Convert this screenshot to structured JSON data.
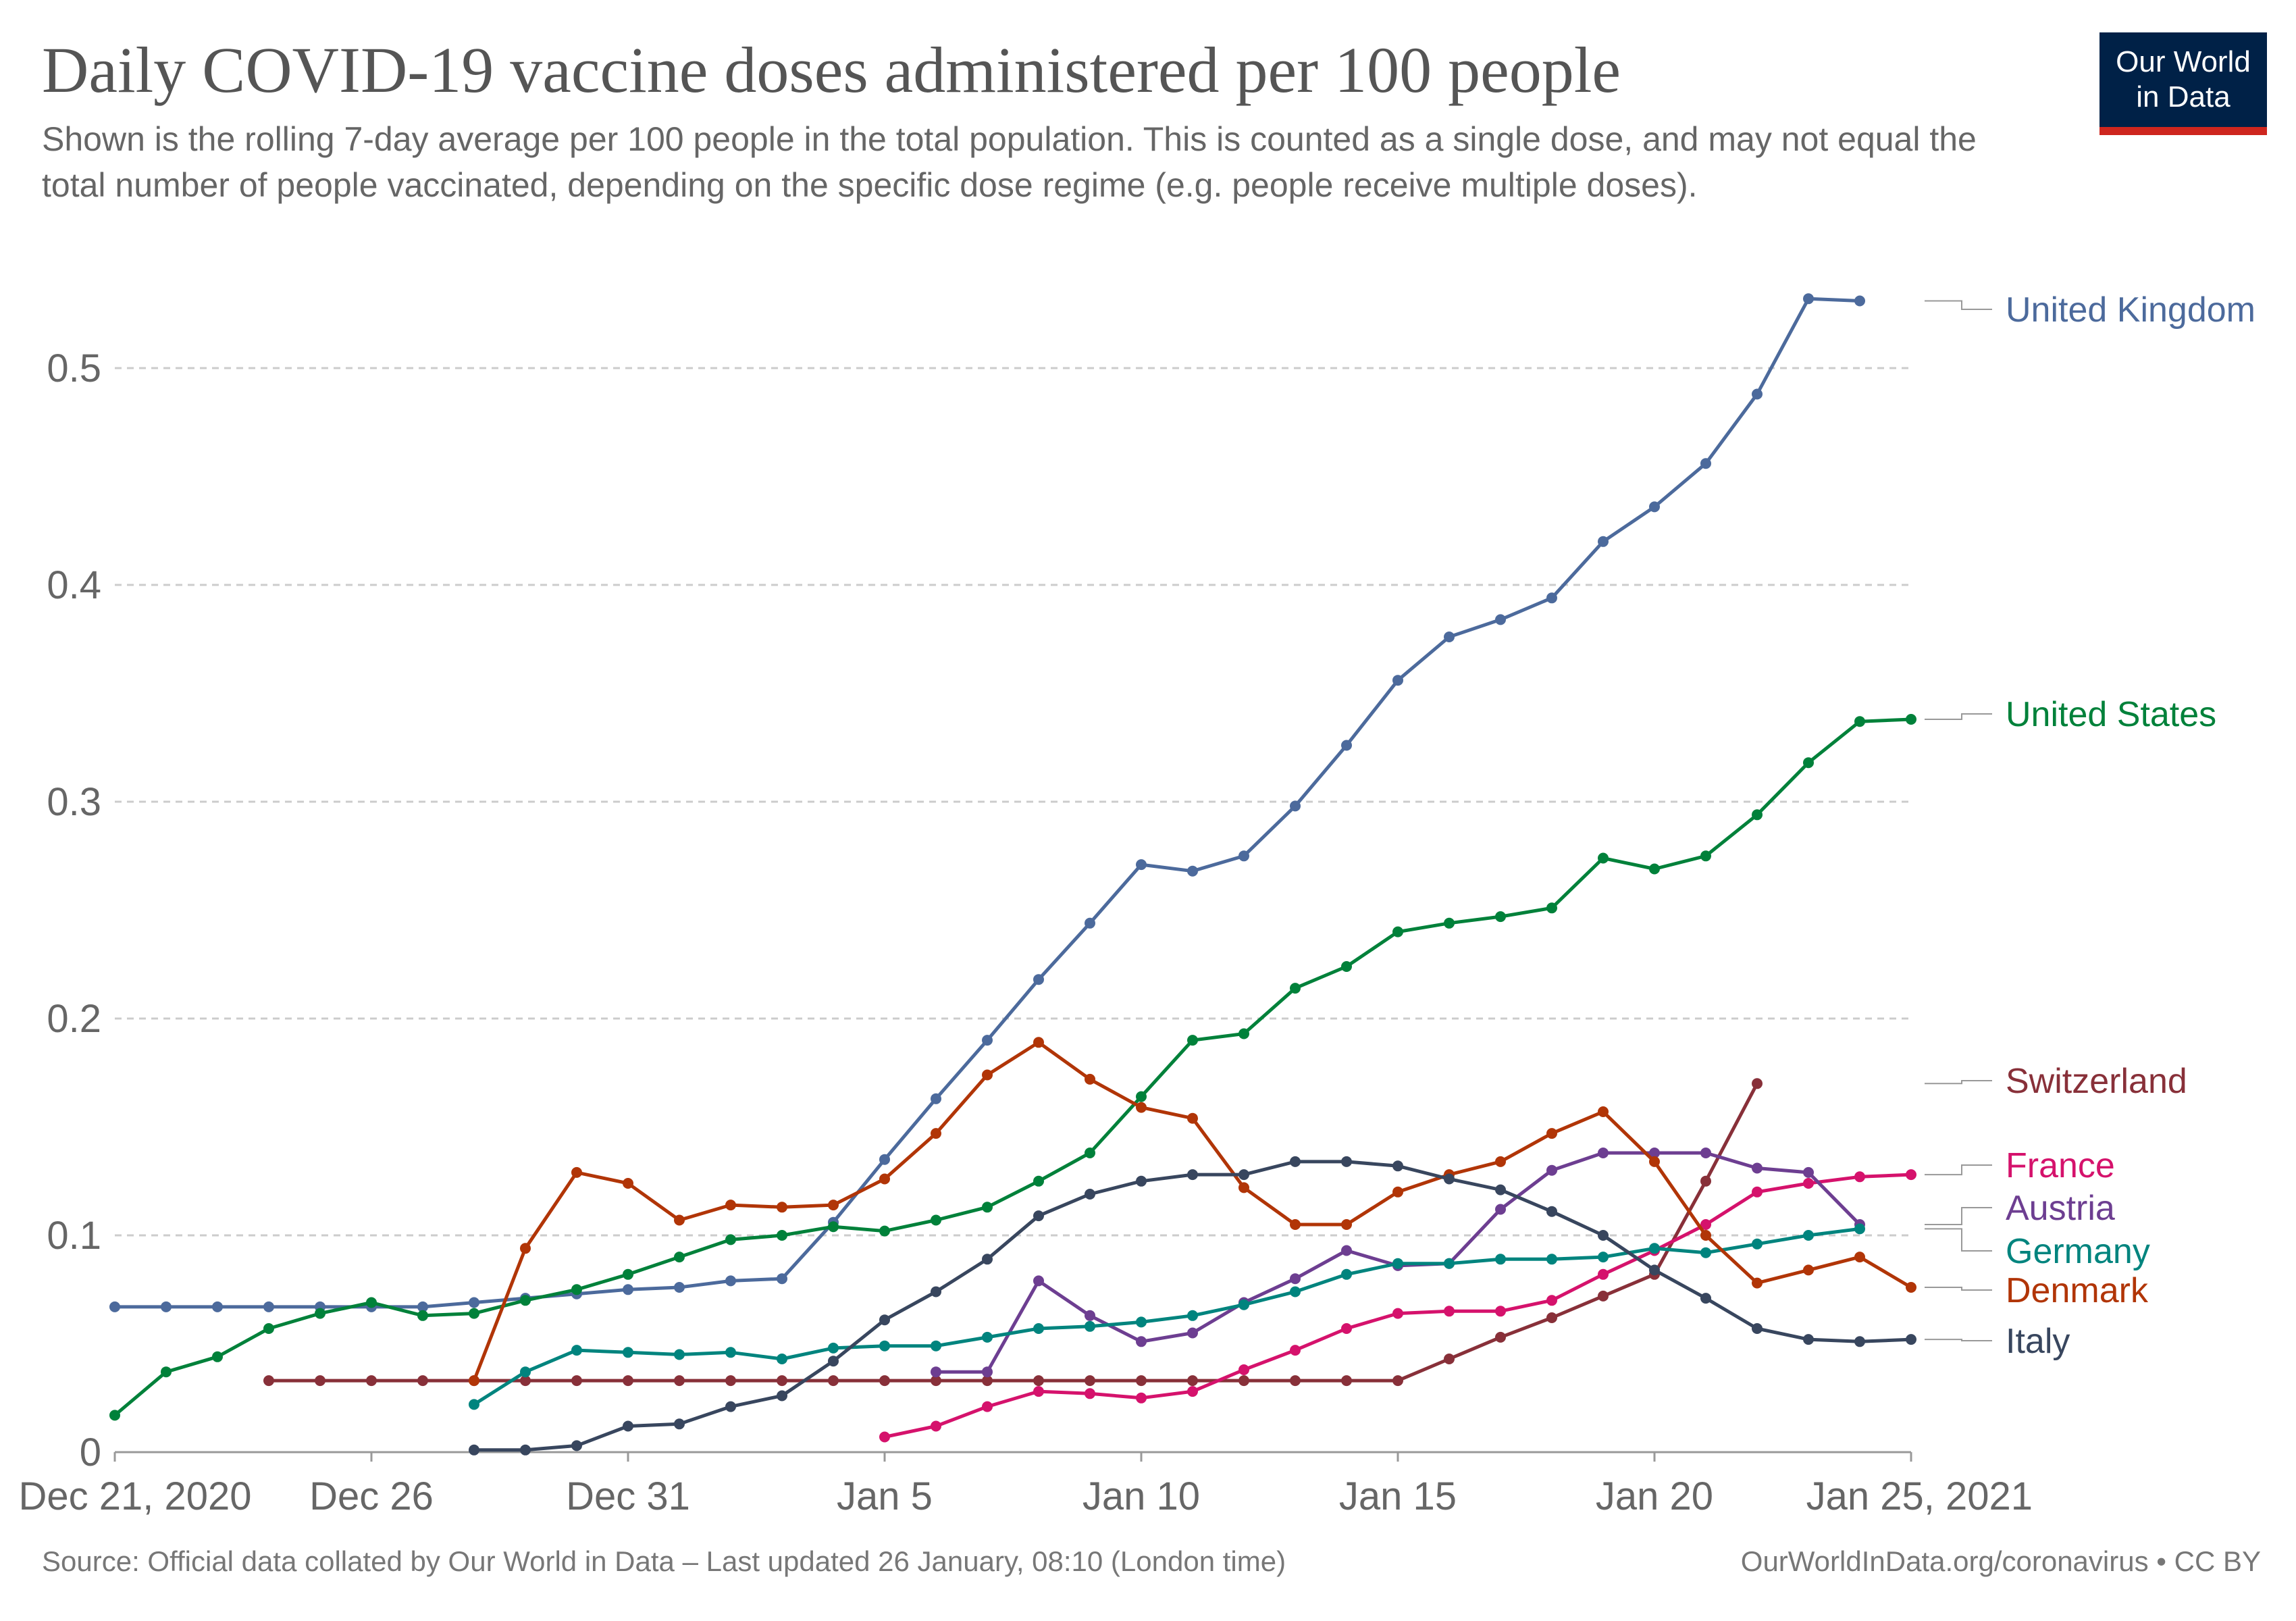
{
  "title": "Daily COVID-19 vaccine doses administered per 100 people",
  "subtitle": "Shown is the rolling 7-day average per 100 people in the total population. This is counted as a single dose, and may not equal the total number of people vaccinated, depending on the specific dose regime (e.g. people receive multiple doses).",
  "logo": {
    "line1": "Our World",
    "line2": "in Data",
    "bg_color": "#002147",
    "accent_color": "#ce261e"
  },
  "footer": {
    "source": "Source: Official data collated by Our World in Data – Last updated 26 January, 08:10 (London time)",
    "link": "OurWorldInData.org/coronavirus • CC BY"
  },
  "chart_data": {
    "type": "line",
    "x_start": "Dec 21, 2020",
    "x_ticks": [
      {
        "day": 0,
        "label": "Dec 21, 2020"
      },
      {
        "day": 5,
        "label": "Dec 26"
      },
      {
        "day": 10,
        "label": "Dec 31"
      },
      {
        "day": 15,
        "label": "Jan 5"
      },
      {
        "day": 20,
        "label": "Jan 10"
      },
      {
        "day": 25,
        "label": "Jan 15"
      },
      {
        "day": 30,
        "label": "Jan 20"
      },
      {
        "day": 35,
        "label": "Jan 25, 2021"
      }
    ],
    "y_ticks": [
      {
        "value": 0,
        "label": "0"
      },
      {
        "value": 0.1,
        "label": "0.1"
      },
      {
        "value": 0.2,
        "label": "0.2"
      },
      {
        "value": 0.3,
        "label": "0.3"
      },
      {
        "value": 0.4,
        "label": "0.4"
      },
      {
        "value": 0.5,
        "label": "0.5"
      }
    ],
    "ylim": [
      0,
      0.5
    ],
    "xlim": [
      "Dec 21, 2020",
      "Jan 25, 2021"
    ],
    "grid": true,
    "legend": "right, labels at line ends",
    "series": [
      {
        "name": "United Kingdom",
        "color": "#4c6a9c",
        "start_day": 0,
        "values": [
          0.067,
          0.067,
          0.067,
          0.067,
          0.067,
          0.067,
          0.067,
          0.069,
          0.071,
          0.073,
          0.075,
          0.076,
          0.079,
          0.08,
          0.106,
          0.135,
          0.163,
          0.19,
          0.218,
          0.244,
          0.271,
          0.268,
          0.275,
          0.298,
          0.326,
          0.356,
          0.376,
          0.384,
          0.394,
          0.42,
          0.436,
          0.456,
          0.488,
          0.532,
          0.531
        ]
      },
      {
        "name": "United States",
        "color": "#00813a",
        "start_day": 0,
        "values": [
          0.017,
          0.037,
          0.044,
          0.057,
          0.064,
          0.069,
          0.063,
          0.064,
          0.07,
          0.075,
          0.082,
          0.09,
          0.098,
          0.1,
          0.104,
          0.102,
          0.107,
          0.113,
          0.125,
          0.138,
          0.164,
          0.19,
          0.193,
          0.214,
          0.224,
          0.24,
          0.244,
          0.247,
          0.251,
          0.274,
          0.269,
          0.275,
          0.294,
          0.318,
          0.337,
          0.338
        ]
      },
      {
        "name": "Switzerland",
        "color": "#883039",
        "start_day": 3,
        "values": [
          0.033,
          0.033,
          0.033,
          0.033,
          0.033,
          0.033,
          0.033,
          0.033,
          0.033,
          0.033,
          0.033,
          0.033,
          0.033,
          0.033,
          0.033,
          0.033,
          0.033,
          0.033,
          0.033,
          0.033,
          0.033,
          0.033,
          0.033,
          0.043,
          0.053,
          0.062,
          0.072,
          0.082,
          0.125,
          0.17
        ]
      },
      {
        "name": "France",
        "color": "#d5126c",
        "start_day": 15,
        "values": [
          0.007,
          0.012,
          0.021,
          0.028,
          0.027,
          0.025,
          0.028,
          0.038,
          0.047,
          0.057,
          0.064,
          0.065,
          0.065,
          0.07,
          0.082,
          0.093,
          0.105,
          0.12,
          0.124,
          0.127,
          0.128
        ]
      },
      {
        "name": "Austria",
        "color": "#6d3e91",
        "start_day": 16,
        "values": [
          0.037,
          0.037,
          0.079,
          0.063,
          0.051,
          0.055,
          0.069,
          0.08,
          0.093,
          0.086,
          0.087,
          0.112,
          0.13,
          0.138,
          0.138,
          0.138,
          0.131,
          0.129,
          0.105
        ]
      },
      {
        "name": "Germany",
        "color": "#00847e",
        "start_day": 7,
        "values": [
          0.022,
          0.037,
          0.047,
          0.046,
          0.045,
          0.046,
          0.043,
          0.048,
          0.049,
          0.049,
          0.053,
          0.057,
          0.058,
          0.06,
          0.063,
          0.068,
          0.074,
          0.082,
          0.087,
          0.087,
          0.089,
          0.089,
          0.09,
          0.094,
          0.092,
          0.096,
          0.1,
          0.103
        ]
      },
      {
        "name": "Denmark",
        "color": "#b13507",
        "start_day": 7,
        "values": [
          0.033,
          0.094,
          0.129,
          0.124,
          0.107,
          0.114,
          0.113,
          0.114,
          0.126,
          0.147,
          0.174,
          0.189,
          0.172,
          0.159,
          0.154,
          0.122,
          0.105,
          0.105,
          0.12,
          0.128,
          0.134,
          0.147,
          0.157,
          0.134,
          0.1,
          0.078,
          0.084,
          0.09,
          0.076
        ]
      },
      {
        "name": "Italy",
        "color": "#38465e",
        "start_day": 7,
        "values": [
          0.001,
          0.001,
          0.003,
          0.012,
          0.013,
          0.021,
          0.026,
          0.042,
          0.061,
          0.074,
          0.089,
          0.109,
          0.119,
          0.125,
          0.128,
          0.128,
          0.134,
          0.134,
          0.132,
          0.126,
          0.121,
          0.111,
          0.1,
          0.084,
          0.071,
          0.057,
          0.052,
          0.051,
          0.052
        ]
      }
    ]
  }
}
